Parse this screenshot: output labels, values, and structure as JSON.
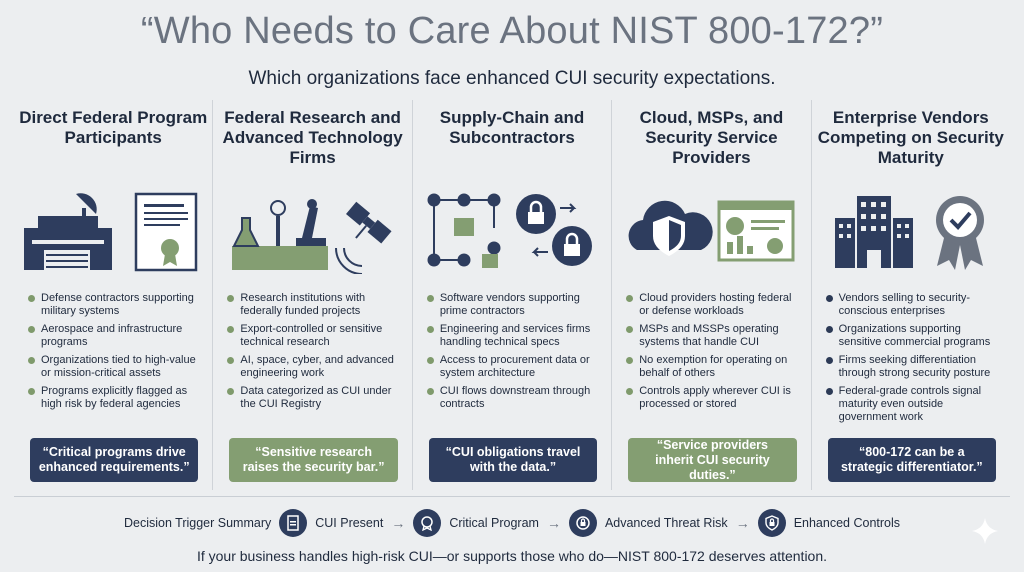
{
  "header": {
    "title": "“Who Needs to Care About NIST 800-172?”",
    "subtitle": "Which organizations face enhanced CUI security expectations."
  },
  "columns": [
    {
      "title": "Direct Federal Program Participants",
      "illustration": [
        "military-facility-icon",
        "certificate-scroll-icon"
      ],
      "bullets": [
        "Defense contractors supporting military systems",
        "Aerospace and infrastructure programs",
        "Organizations tied to high-value or mission-critical assets",
        "Programs explicitly flagged as high risk by federal agencies"
      ],
      "quote": "“Critical programs drive enhanced requirements.”"
    },
    {
      "title": "Federal Research and Advanced Technology Firms",
      "illustration": [
        "lab-equipment-icon",
        "microscope-icon",
        "satellite-icon"
      ],
      "bullets": [
        "Research institutions with federally funded projects",
        "Export-controlled or sensitive technical research",
        "AI, space, cyber, and advanced engineering work",
        "Data categorized as CUI under the CUI Registry"
      ],
      "quote": "“Sensitive research raises the security bar.”"
    },
    {
      "title": "Supply-Chain and Subcontractors",
      "illustration": [
        "supply-chain-flow-icon",
        "lock-gear-icon"
      ],
      "bullets": [
        "Software vendors supporting prime contractors",
        "Engineering and services firms handling technical specs",
        "Access to procurement data or system architecture",
        "CUI flows downstream through contracts"
      ],
      "quote": "“CUI obligations travel with the data.”"
    },
    {
      "title": "Cloud, MSPs, and Security Service Providers",
      "illustration": [
        "cloud-shield-icon",
        "dashboard-icon"
      ],
      "bullets": [
        "Cloud providers hosting federal or defense workloads",
        "MSPs and MSSPs operating systems that handle CUI",
        "No exemption for operating on behalf of others",
        "Controls apply wherever CUI is processed or stored"
      ],
      "quote": "“Service providers inherit CUI security duties.”"
    },
    {
      "title": "Enterprise Vendors Competing on Security Maturity",
      "illustration": [
        "office-building-icon",
        "award-badge-icon"
      ],
      "bullets": [
        "Vendors selling to security-conscious enterprises",
        "Organizations supporting sensitive commercial programs",
        "Firms seeking differentiation through strong security posture",
        "Federal-grade controls signal maturity even outside government work"
      ],
      "quote": "“800-172 can be a strategic differentiator.”"
    }
  ],
  "decision_trigger": {
    "label": "Decision Trigger Summary",
    "steps": [
      {
        "icon": "cui-document-icon",
        "label": "CUI Present"
      },
      {
        "icon": "award-badge-icon",
        "label": "Critical Program"
      },
      {
        "icon": "crosshair-lock-icon",
        "label": "Advanced Threat Risk"
      },
      {
        "icon": "shield-lock-icon",
        "label": "Enhanced Controls"
      }
    ]
  },
  "footer": "If your business handles high-risk CUI—or supports those who do—NIST 800-172 deserves attention.",
  "colors": {
    "navy": "#2e3d5e",
    "green": "#849e72",
    "title_gray": "#6b7380",
    "background": "#eceef0"
  }
}
